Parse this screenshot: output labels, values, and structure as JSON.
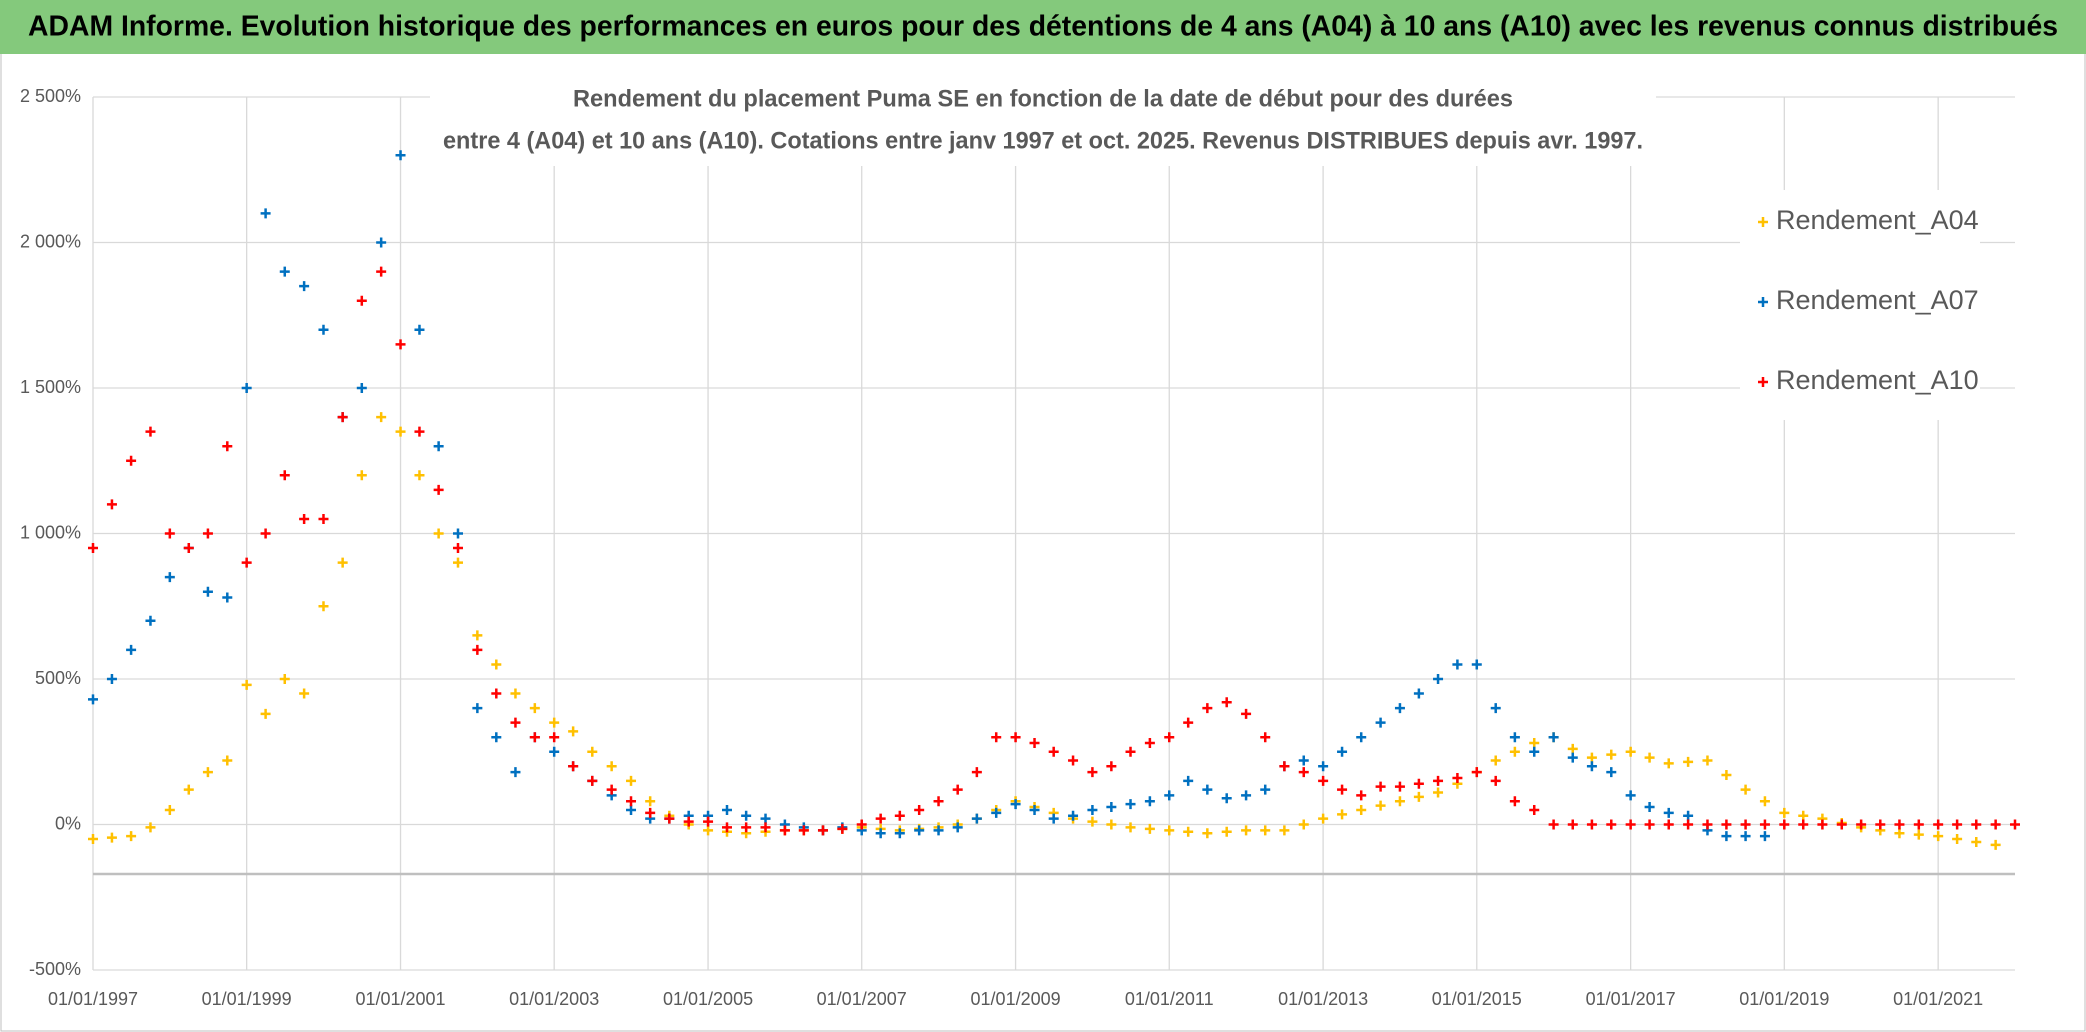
{
  "header": {
    "title": "ADAM Informe. Evolution historique des performances en euros pour des détentions de 4 ans (A04) à 10 ans (A10) avec les revenus connus distribués"
  },
  "chart_data": {
    "type": "scatter",
    "title": "Rendement du placement Puma SE en fonction de la date de début pour des durées",
    "subtitle": "entre 4 (A04) et 10 ans (A10). Cotations entre janv 1997 et oct. 2025. Revenus DISTRIBUES depuis avr. 1997.",
    "x": [
      "1997-01-01",
      "1997-04-01",
      "1997-07-01",
      "1997-10-01",
      "1998-01-01",
      "1998-04-01",
      "1998-07-01",
      "1998-10-01",
      "1999-01-01",
      "1999-04-01",
      "1999-07-01",
      "1999-10-01",
      "2000-01-01",
      "2000-04-01",
      "2000-07-01",
      "2000-10-01",
      "2001-01-01",
      "2001-04-01",
      "2001-07-01",
      "2001-10-01",
      "2002-01-01",
      "2002-04-01",
      "2002-07-01",
      "2002-10-01",
      "2003-01-01",
      "2003-04-01",
      "2003-07-01",
      "2003-10-01",
      "2004-01-01",
      "2004-04-01",
      "2004-07-01",
      "2004-10-01",
      "2005-01-01",
      "2005-04-01",
      "2005-07-01",
      "2005-10-01",
      "2006-01-01",
      "2006-04-01",
      "2006-07-01",
      "2006-10-01",
      "2007-01-01",
      "2007-04-01",
      "2007-07-01",
      "2007-10-01",
      "2008-01-01",
      "2008-04-01",
      "2008-07-01",
      "2008-10-01",
      "2009-01-01",
      "2009-04-01",
      "2009-07-01",
      "2009-10-01",
      "2010-01-01",
      "2010-04-01",
      "2010-07-01",
      "2010-10-01",
      "2011-01-01",
      "2011-04-01",
      "2011-07-01",
      "2011-10-01",
      "2012-01-01",
      "2012-04-01",
      "2012-07-01",
      "2012-10-01",
      "2013-01-01",
      "2013-04-01",
      "2013-07-01",
      "2013-10-01",
      "2014-01-01",
      "2014-04-01",
      "2014-07-01",
      "2014-10-01",
      "2015-01-01",
      "2015-04-01",
      "2015-07-01",
      "2015-10-01",
      "2016-01-01",
      "2016-04-01",
      "2016-07-01",
      "2016-10-01",
      "2017-01-01",
      "2017-04-01",
      "2017-07-01",
      "2017-10-01",
      "2018-01-01",
      "2018-04-01",
      "2018-07-01",
      "2018-10-01",
      "2019-01-01",
      "2019-04-01",
      "2019-07-01",
      "2019-10-01",
      "2020-01-01",
      "2020-04-01",
      "2020-07-01",
      "2020-10-01",
      "2021-01-01",
      "2021-04-01",
      "2021-07-01",
      "2021-10-01",
      "2022-01-01"
    ],
    "series": [
      {
        "name": "Rendement_A04",
        "color": "#ffc000",
        "values": [
          -50,
          -45,
          -40,
          -10,
          50,
          120,
          180,
          220,
          480,
          380,
          500,
          450,
          750,
          900,
          1200,
          1400,
          1350,
          1200,
          1000,
          900,
          650,
          550,
          450,
          400,
          350,
          320,
          250,
          200,
          150,
          80,
          30,
          0,
          -20,
          -25,
          -30,
          -25,
          -20,
          -20,
          -20,
          -15,
          -10,
          -15,
          -20,
          -15,
          -10,
          0,
          20,
          50,
          80,
          60,
          40,
          20,
          10,
          0,
          -10,
          -15,
          -20,
          -25,
          -30,
          -25,
          -20,
          -20,
          -20,
          0,
          20,
          35,
          50,
          65,
          80,
          95,
          110,
          140,
          180,
          220,
          250,
          280,
          300,
          260,
          230,
          240,
          250,
          230,
          210,
          215,
          220,
          170,
          120,
          80,
          40,
          30,
          20,
          5,
          -10,
          -20,
          -30,
          -35,
          -40,
          -50,
          -60,
          -70,
          null
        ]
      },
      {
        "name": "Rendement_A07",
        "color": "#0070c0",
        "values": [
          430,
          500,
          600,
          700,
          850,
          950,
          800,
          780,
          1500,
          2100,
          1900,
          1850,
          1700,
          1400,
          1500,
          2000,
          2300,
          1700,
          1300,
          1000,
          400,
          300,
          180,
          300,
          250,
          200,
          150,
          100,
          50,
          20,
          20,
          30,
          30,
          50,
          30,
          20,
          0,
          -10,
          -20,
          -10,
          -20,
          -30,
          -30,
          -20,
          -20,
          -10,
          20,
          40,
          70,
          50,
          20,
          30,
          50,
          60,
          70,
          80,
          100,
          150,
          120,
          90,
          100,
          120,
          200,
          220,
          200,
          250,
          300,
          350,
          400,
          450,
          500,
          550,
          550,
          400,
          300,
          250,
          300,
          230,
          200,
          180,
          100,
          60,
          40,
          30,
          -20,
          -40,
          -40,
          -40,
          null,
          null,
          null,
          null,
          null,
          null,
          null,
          null,
          null,
          null,
          null,
          null,
          null
        ]
      },
      {
        "name": "Rendement_A10",
        "color": "#ff0000",
        "values": [
          950,
          1100,
          1250,
          1350,
          1000,
          950,
          1000,
          1300,
          900,
          1000,
          1200,
          1050,
          1050,
          1400,
          1800,
          1900,
          1650,
          1350,
          1150,
          950,
          600,
          450,
          350,
          300,
          300,
          200,
          150,
          120,
          80,
          40,
          20,
          10,
          10,
          -10,
          -10,
          -10,
          -20,
          -20,
          -20,
          -15,
          0,
          20,
          30,
          50,
          80,
          120,
          180,
          300,
          300,
          280,
          250,
          220,
          180,
          200,
          250,
          280,
          300,
          350,
          400,
          420,
          380,
          300,
          200,
          180,
          150,
          120,
          100,
          130,
          130,
          140,
          150,
          160,
          180,
          150,
          80,
          50,
          0,
          0,
          0,
          0,
          0,
          0,
          0,
          0,
          0,
          0,
          0,
          0,
          0,
          0,
          0,
          0,
          0,
          0,
          0,
          0,
          0,
          0,
          0,
          0,
          0
        ]
      }
    ],
    "xlim": [
      "1997-01-01",
      "2022-01-01"
    ],
    "xticks": [
      {
        "value": "1997-01-01",
        "label": "01/01/1997"
      },
      {
        "value": "1999-01-01",
        "label": "01/01/1999"
      },
      {
        "value": "2001-01-01",
        "label": "01/01/2001"
      },
      {
        "value": "2003-01-01",
        "label": "01/01/2003"
      },
      {
        "value": "2005-01-01",
        "label": "01/01/2005"
      },
      {
        "value": "2007-01-01",
        "label": "01/01/2007"
      },
      {
        "value": "2009-01-01",
        "label": "01/01/2009"
      },
      {
        "value": "2011-01-01",
        "label": "01/01/2011"
      },
      {
        "value": "2013-01-01",
        "label": "01/01/2013"
      },
      {
        "value": "2015-01-01",
        "label": "01/01/2015"
      },
      {
        "value": "2017-01-01",
        "label": "01/01/2017"
      },
      {
        "value": "2019-01-01",
        "label": "01/01/2019"
      },
      {
        "value": "2021-01-01",
        "label": "01/01/2021"
      }
    ],
    "ylim": [
      -500,
      2500
    ],
    "yticks": [
      {
        "value": -500,
        "label": "-500%"
      },
      {
        "value": 0,
        "label": "0%"
      },
      {
        "value": 500,
        "label": "500%"
      },
      {
        "value": 1000,
        "label": "1 000%"
      },
      {
        "value": 1500,
        "label": "1 500%"
      },
      {
        "value": 2000,
        "label": "2 000%"
      },
      {
        "value": 2500,
        "label": "2 500%"
      }
    ],
    "hline": -170,
    "grid": true,
    "legend": "right"
  }
}
